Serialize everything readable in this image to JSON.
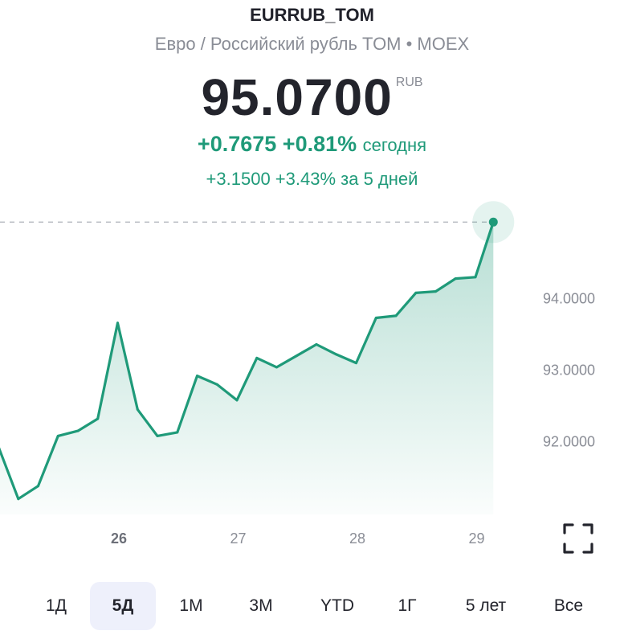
{
  "header": {
    "ticker": "EURRUB_TOM",
    "subtitle": "Евро / Российский рубль TOM • MOEX",
    "price": "95.0700",
    "currency": "RUB",
    "change_abs": "+0.7675",
    "change_pct": "+0.81%",
    "change_label": "сегодня",
    "period_change": "+3.1500  +3.43% за 5 дней"
  },
  "chart_data": {
    "type": "area",
    "x": [
      0,
      0.167,
      0.333,
      0.5,
      0.667,
      0.833,
      1,
      1.167,
      1.333,
      1.5,
      1.667,
      1.833,
      2,
      2.167,
      2.333,
      2.5,
      2.667,
      2.833,
      3,
      3.167,
      3.333,
      3.5,
      3.667,
      3.833,
      4,
      4.15
    ],
    "values": [
      91.93,
      91.2,
      91.38,
      92.08,
      92.15,
      92.32,
      93.66,
      92.45,
      92.08,
      92.13,
      92.92,
      92.8,
      92.58,
      93.17,
      93.04,
      93.2,
      93.36,
      93.22,
      93.1,
      93.73,
      93.76,
      94.08,
      94.1,
      94.28,
      94.3,
      95.07
    ],
    "current_value": 95.07,
    "xticks": [
      "26",
      "27",
      "28",
      "29"
    ],
    "yticks": [
      "94.0000",
      "93.0000",
      "92.0000"
    ],
    "ylim": [
      91.0,
      95.5
    ],
    "line_color": "#1f9a79",
    "fill_color": "#1f9a79",
    "grid": false
  },
  "periods": [
    {
      "label": "1Д",
      "active": false
    },
    {
      "label": "5Д",
      "active": true
    },
    {
      "label": "1М",
      "active": false
    },
    {
      "label": "3М",
      "active": false
    },
    {
      "label": "YTD",
      "active": false
    },
    {
      "label": "1Г",
      "active": false
    },
    {
      "label": "5 лет",
      "active": false
    },
    {
      "label": "Все",
      "active": false
    }
  ],
  "icons": {
    "expand": "expand-icon"
  }
}
